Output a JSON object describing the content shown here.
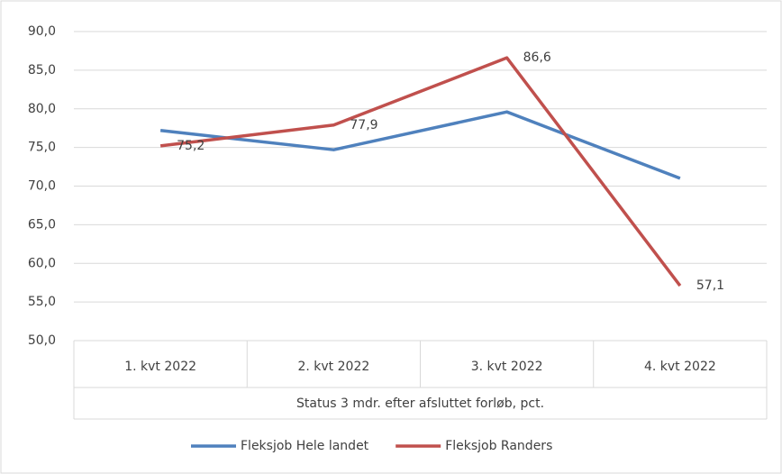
{
  "chart_data": {
    "type": "line",
    "x_label": "Status 3 mdr. efter afsluttet forløb, pct.",
    "categories": [
      "1. kvt 2022",
      "2. kvt 2022",
      "3. kvt 2022",
      "4. kvt 2022"
    ],
    "series": [
      {
        "name": "Fleksjob Hele landet",
        "color": "#4f81bd",
        "values": [
          77.2,
          74.7,
          79.6,
          71.0
        ]
      },
      {
        "name": "Fleksjob Randers",
        "color": "#c0504d",
        "values": [
          75.2,
          77.9,
          86.6,
          57.1
        ],
        "value_labels": [
          "75,2",
          "77,9",
          "86,6",
          "57,1"
        ]
      }
    ],
    "ylim": [
      50,
      90
    ],
    "yticks": [
      {
        "value": 50,
        "label": "50,0"
      },
      {
        "value": 55,
        "label": "55,0"
      },
      {
        "value": 60,
        "label": "60,0"
      },
      {
        "value": 65,
        "label": "65,0"
      },
      {
        "value": 70,
        "label": "70,0"
      },
      {
        "value": 75,
        "label": "75,0"
      },
      {
        "value": 80,
        "label": "80,0"
      },
      {
        "value": 85,
        "label": "85,0"
      },
      {
        "value": 90,
        "label": "90,0"
      }
    ],
    "grid": true,
    "legend": "bottom"
  }
}
